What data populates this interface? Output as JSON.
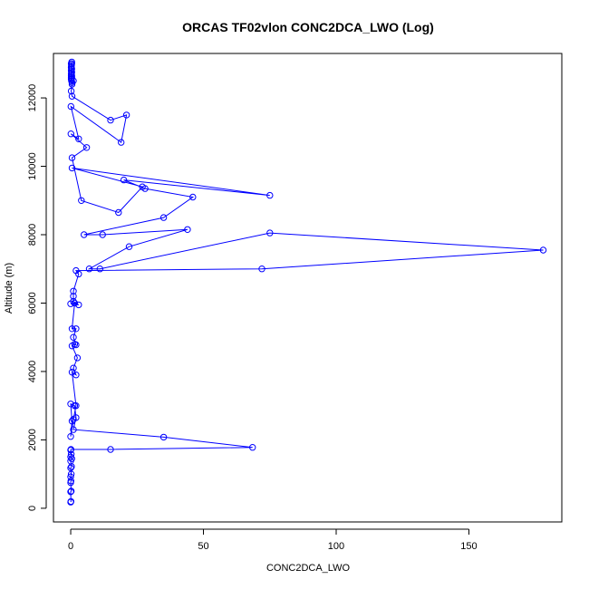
{
  "chart_data": {
    "type": "line",
    "title": "ORCAS TF02vlon CONC2DCA_LWO (Log)",
    "xlabel": "CONC2DCA_LWO",
    "ylabel": "Altitude (m)",
    "xlim": [
      -6.5,
      185
    ],
    "ylim": [
      -400,
      13300
    ],
    "xticks": [
      0,
      50,
      100,
      150
    ],
    "yticks": [
      0,
      2000,
      4000,
      6000,
      8000,
      10000,
      12000
    ],
    "grid": false,
    "marker": "open-circle",
    "color": "#0000ff",
    "series": [
      {
        "x": [
          0,
          0.1,
          0,
          0.2,
          0,
          0.1,
          0,
          0.2,
          0,
          0.3,
          0,
          0.4,
          0,
          0.2,
          0,
          0.1,
          15,
          68.5,
          35,
          1,
          2,
          1.5,
          0,
          0.5,
          0,
          1,
          2,
          0.5,
          2,
          1,
          2.5,
          0.5,
          1.5,
          2,
          1,
          2,
          0.5,
          1.5,
          0,
          3,
          1,
          1,
          1,
          3,
          2,
          72,
          178,
          75,
          11,
          7,
          22,
          44,
          12,
          5,
          35,
          46,
          28,
          20,
          75,
          0.5,
          27,
          18,
          4,
          0.5,
          6,
          0.1,
          3,
          0.1,
          19,
          21,
          15,
          0.5,
          0.2,
          0.5,
          1,
          0.5,
          0.3,
          0.2,
          0.4,
          0.2,
          0.3,
          0.2,
          0.4,
          0.2,
          0.3,
          0.2,
          0.4,
          0.3,
          0.4,
          0.2,
          0.3,
          0.2,
          0.4,
          0.3,
          0.2,
          0.4
        ],
        "y": [
          180,
          200,
          480,
          500,
          750,
          800,
          920,
          1000,
          1180,
          1220,
          1380,
          1450,
          1500,
          1580,
          1700,
          1720,
          1720,
          1780,
          2080,
          2300,
          2650,
          3000,
          3050,
          2550,
          2100,
          2600,
          3000,
          3980,
          3900,
          4100,
          4400,
          4750,
          4800,
          4780,
          5000,
          5250,
          5250,
          6000,
          5980,
          5950,
          6050,
          6200,
          6350,
          6850,
          6950,
          7000,
          7550,
          8050,
          7000,
          7000,
          7650,
          8150,
          8000,
          8000,
          8500,
          9100,
          9350,
          9600,
          9150,
          9950,
          9400,
          8650,
          9000,
          10250,
          10550,
          10950,
          10800,
          11750,
          10700,
          11500,
          11350,
          12050,
          12200,
          12400,
          12500,
          12450,
          12550,
          12600,
          12650,
          12700,
          12750,
          12800,
          12850,
          12900,
          12950,
          13000,
          13050,
          12700,
          12600,
          12550,
          12500,
          12650,
          12750,
          12850,
          12900,
          13000
        ]
      }
    ]
  }
}
